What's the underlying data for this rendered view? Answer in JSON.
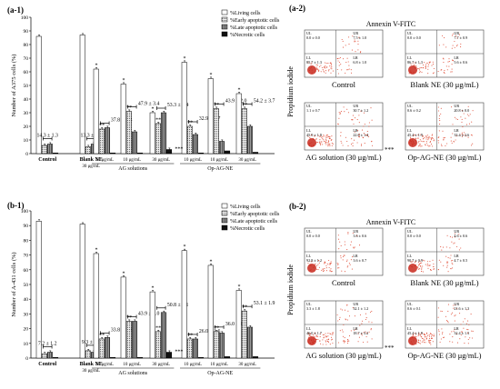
{
  "chart_data": [
    {
      "id": "a-1",
      "type": "bar",
      "panel_label": "(a-1)",
      "ylabel": "Number of A375 cells (%)",
      "ylim": [
        0,
        100
      ],
      "yticks": [
        "0",
        "10",
        "20",
        "30",
        "40",
        "50",
        "60",
        "70",
        "80",
        "90",
        "100"
      ],
      "legend": [
        "%Living cells",
        "%Early apoptotic cells",
        "%Late apoptotic cells",
        "%Necrotic cells"
      ],
      "legend_position": "top-right",
      "categories": [
        "Control",
        "Blank NE",
        "10 μg/mL",
        "10 μg/mL",
        "30 μg/mL",
        "10 μg/mL",
        "10 μg/mL",
        "30 μg/mL"
      ],
      "sublabels": {
        "blank": "30 μg/mL",
        "ag": "AG solutions",
        "op": "Op-AG-NE"
      },
      "series": [
        {
          "name": "%Living cells",
          "values": [
            86,
            87,
            62,
            51,
            30,
            67,
            55,
            44
          ]
        },
        {
          "name": "%Early apoptotic cells",
          "values": [
            6,
            5,
            18,
            31,
            22,
            20,
            33,
            33
          ]
        },
        {
          "name": "%Late apoptotic cells",
          "values": [
            7,
            7,
            19,
            16,
            30,
            14,
            9,
            20
          ]
        },
        {
          "name": "%Necrotic cells",
          "values": [
            0.5,
            0.5,
            0.5,
            0.5,
            3,
            0.5,
            2,
            1
          ]
        }
      ],
      "annotations": [
        "14.3 ± 1.3",
        "13.3 ± 1.3",
        "37.8 ± 1.8",
        "47.9 ± 3.4",
        "53.3 ± 2.4",
        "32.9 ± 1.7",
        "43.9 ± 2.0",
        "54.2 ± 3.7"
      ],
      "significance": [
        "*",
        "**",
        "***"
      ]
    },
    {
      "id": "b-1",
      "type": "bar",
      "panel_label": "(b-1)",
      "ylabel": "Number of A-431 cells (%)",
      "ylim": [
        0,
        100
      ],
      "yticks": [
        "0",
        "10",
        "20",
        "30",
        "40",
        "50",
        "60",
        "70",
        "80",
        "90",
        "100"
      ],
      "legend": [
        "%Living cells",
        "%Early apoptotic cells",
        "%Late apoptotic cells",
        "%Necrotic cells"
      ],
      "legend_position": "top-right",
      "categories": [
        "Control",
        "Blank NE",
        "10 μg/mL",
        "10 μg/mL",
        "30 μg/mL",
        "10 μg/mL",
        "10 μg/mL",
        "30 μg/mL"
      ],
      "sublabels": {
        "blank": "30 μg/mL",
        "ag": "AG solutions",
        "op": "Op-AG-NE"
      },
      "series": [
        {
          "name": "%Living cells",
          "values": [
            93,
            91,
            71,
            55,
            45,
            73,
            63,
            46
          ]
        },
        {
          "name": "%Early apoptotic cells",
          "values": [
            3,
            5,
            13,
            25,
            18,
            13,
            18,
            32
          ]
        },
        {
          "name": "%Late apoptotic cells",
          "values": [
            4,
            4,
            14,
            25,
            31,
            13,
            17,
            21
          ]
        },
        {
          "name": "%Necrotic cells",
          "values": [
            0.5,
            0.5,
            0.5,
            0.5,
            4,
            0.5,
            1,
            1
          ]
        }
      ],
      "annotations": [
        "7.2 ± 1.2",
        "9.3 ± 0.3",
        "33.8 ± 1.8",
        "43.9 ± 1.0",
        "50.8 ± 0.1",
        "26.0 ± 1.6",
        "36.0 ± 1.8",
        "53.1 ± 1.9"
      ],
      "significance": [
        "*",
        "**",
        "***"
      ]
    }
  ],
  "flow": {
    "a2": {
      "label": "(a-2)",
      "xlabel": "Annexin V-FITC",
      "ylabel": "Propidium iodide",
      "plots": [
        {
          "caption": "Control",
          "ul": "UL",
          "ur": "UR",
          "ll": "LL",
          "lr": "LR",
          "ul_v": "0.0 ± 0.0",
          "ur_v": "7.5 ± 1.0",
          "ll_v": "85.7 ± 1.3",
          "lr_v": "6.8 ± 1.0",
          "stars": ""
        },
        {
          "caption": "Blank NE (30 μg/mL)",
          "ul": "UL",
          "ur": "UR",
          "ll": "LL",
          "lr": "LR",
          "ul_v": "0.0 ± 0.0",
          "ur_v": "7.7 ± 0.9",
          "ll_v": "86.7 ± 1.3",
          "lr_v": "5.6 ± 0.6",
          "stars": ""
        },
        {
          "caption": "AG solution (30 μg/mL)",
          "ul": "UL",
          "ur": "UR",
          "ll": "LL",
          "lr": "LR",
          "ul_v": "1.1 ± 0.7",
          "ur_v": "30.7 ± 1.2",
          "ll_v": "45.9 ± 1.9",
          "lr_v": "22.6 ± 1.4",
          "stars": "***"
        },
        {
          "caption": "Op-AG-NE (30 μg/mL)",
          "ul": "UL",
          "ur": "UR",
          "ll": "LL",
          "lr": "LR",
          "ul_v": "0.6 ± 0.2",
          "ur_v": "20.8 ± 0.0",
          "ll_v": "45.4 ± 1.9",
          "lr_v": "33.4 ± 2.6",
          "stars": ""
        }
      ]
    },
    "b2": {
      "label": "(b-2)",
      "xlabel": "Annexin V-FITC",
      "ylabel": "Propidium iodide",
      "plots": [
        {
          "caption": "Control",
          "ul": "UL",
          "ur": "UR",
          "ll": "LL",
          "lr": "LR",
          "ul_v": "0.0 ± 0.0",
          "ur_v": "3.6 ± 0.6",
          "ll_v": "92.8 ± 1.2",
          "lr_v": "3.6 ± 0.7",
          "stars": ""
        },
        {
          "caption": "Blank NE (30 μg/mL)",
          "ul": "UL",
          "ur": "UR",
          "ll": "LL",
          "lr": "LR",
          "ul_v": "0.0 ± 0.0",
          "ur_v": "4.6 ± 0.6",
          "ll_v": "90.7 ± 0.9",
          "lr_v": "4.7 ± 0.5",
          "stars": ""
        },
        {
          "caption": "AG solution (30 μg/mL)",
          "ul": "UL",
          "ur": "UR",
          "ll": "LL",
          "lr": "LR",
          "ul_v": "3.3 ± 1.8",
          "ur_v": "32.1 ± 1.2",
          "ll_v": "46.0 ± 1.7",
          "lr_v": "18.7 ± 3.2",
          "stars": "***"
        },
        {
          "caption": "Op-AG-NE (30 μg/mL)",
          "ul": "UL",
          "ur": "UR",
          "ll": "LL",
          "lr": "LR",
          "ul_v": "0.6 ± 0.1",
          "ur_v": "21.6 ± 1.3",
          "ll_v": "45.4 ± 1.9",
          "lr_v": "32.4 ± 1.3",
          "stars": ""
        }
      ]
    }
  },
  "colors": {
    "living": "#ffffff",
    "early": "#d9d9d9",
    "late": "#7f7f7f",
    "necrotic": "#111111",
    "dot": "#e0503a",
    "dense": "#c8281c"
  }
}
